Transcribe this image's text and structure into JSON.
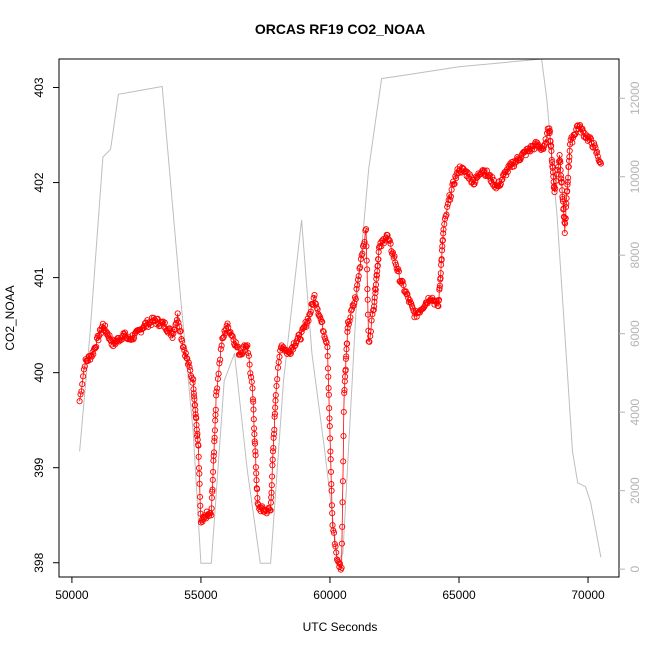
{
  "chart_data": {
    "type": "line",
    "title": "ORCAS RF19 CO2_NOAA",
    "xlabel": "UTC Seconds",
    "ylabel": "CO2_NOAA",
    "xlim": [
      49500,
      71200
    ],
    "ylim": [
      397.85,
      403.3
    ],
    "y2lim": [
      -200,
      13000
    ],
    "x_ticks": [
      50000,
      55000,
      60000,
      65000,
      70000
    ],
    "y_ticks": [
      398,
      399,
      400,
      401,
      402,
      403
    ],
    "y2_ticks": [
      0,
      2000,
      4000,
      6000,
      8000,
      10000,
      12000
    ],
    "colors": {
      "co2": "#ff0000",
      "altitude": "#bebebe",
      "axis": "#000000",
      "right_axis": "#b3b3b3"
    },
    "series": [
      {
        "style": "points-and-line",
        "axis": "left",
        "keypoints": [
          [
            50300,
            399.7
          ],
          [
            50400,
            399.9
          ],
          [
            50500,
            400.1
          ],
          [
            50800,
            400.2
          ],
          [
            51000,
            400.35
          ],
          [
            51200,
            400.5
          ],
          [
            51400,
            400.4
          ],
          [
            51600,
            400.3
          ],
          [
            51800,
            400.35
          ],
          [
            52000,
            400.4
          ],
          [
            52200,
            400.35
          ],
          [
            52500,
            400.4
          ],
          [
            52800,
            400.5
          ],
          [
            53200,
            400.55
          ],
          [
            53600,
            400.5
          ],
          [
            53900,
            400.4
          ],
          [
            54100,
            400.6
          ],
          [
            54300,
            400.3
          ],
          [
            54500,
            400.1
          ],
          [
            54700,
            399.9
          ],
          [
            54900,
            399.2
          ],
          [
            55000,
            398.4
          ],
          [
            55200,
            398.5
          ],
          [
            55400,
            398.5
          ],
          [
            55600,
            399.8
          ],
          [
            55800,
            400.3
          ],
          [
            56000,
            400.5
          ],
          [
            56200,
            400.4
          ],
          [
            56500,
            400.2
          ],
          [
            56800,
            400.3
          ],
          [
            57000,
            399.8
          ],
          [
            57200,
            398.6
          ],
          [
            57400,
            398.55
          ],
          [
            57700,
            398.55
          ],
          [
            57900,
            399.8
          ],
          [
            58100,
            400.3
          ],
          [
            58400,
            400.2
          ],
          [
            58600,
            400.3
          ],
          [
            58900,
            400.4
          ],
          [
            59200,
            400.6
          ],
          [
            59400,
            400.8
          ],
          [
            59700,
            400.5
          ],
          [
            59900,
            400.3
          ],
          [
            60100,
            398.4
          ],
          [
            60300,
            398.0
          ],
          [
            60450,
            397.95
          ],
          [
            60550,
            399.8
          ],
          [
            60700,
            400.5
          ],
          [
            61000,
            400.8
          ],
          [
            61200,
            401.2
          ],
          [
            61400,
            401.5
          ],
          [
            61500,
            400.3
          ],
          [
            61700,
            400.7
          ],
          [
            61900,
            401.3
          ],
          [
            62200,
            401.45
          ],
          [
            62500,
            401.2
          ],
          [
            62700,
            401.0
          ],
          [
            63000,
            400.8
          ],
          [
            63300,
            400.6
          ],
          [
            63600,
            400.7
          ],
          [
            63900,
            400.8
          ],
          [
            64200,
            400.7
          ],
          [
            64400,
            401.5
          ],
          [
            64600,
            401.8
          ],
          [
            64800,
            402.0
          ],
          [
            65000,
            402.15
          ],
          [
            65300,
            402.1
          ],
          [
            65600,
            402.0
          ],
          [
            65900,
            402.15
          ],
          [
            66200,
            402.05
          ],
          [
            66500,
            401.95
          ],
          [
            66800,
            402.1
          ],
          [
            67100,
            402.2
          ],
          [
            67500,
            402.3
          ],
          [
            68000,
            402.4
          ],
          [
            68300,
            402.35
          ],
          [
            68500,
            402.6
          ],
          [
            68700,
            401.9
          ],
          [
            68900,
            402.3
          ],
          [
            69100,
            401.5
          ],
          [
            69300,
            402.4
          ],
          [
            69600,
            402.6
          ],
          [
            69900,
            402.5
          ],
          [
            70200,
            402.4
          ],
          [
            70500,
            402.2
          ]
        ]
      },
      {
        "style": "line",
        "axis": "right",
        "keypoints": [
          [
            50300,
            3000
          ],
          [
            50700,
            6000
          ],
          [
            51200,
            10500
          ],
          [
            51500,
            10700
          ],
          [
            51800,
            12100
          ],
          [
            53500,
            12300
          ],
          [
            54200,
            7000
          ],
          [
            54700,
            3500
          ],
          [
            55000,
            150
          ],
          [
            55400,
            150
          ],
          [
            55900,
            4800
          ],
          [
            56300,
            5500
          ],
          [
            56800,
            2500
          ],
          [
            57300,
            150
          ],
          [
            57700,
            150
          ],
          [
            58200,
            4800
          ],
          [
            58900,
            8900
          ],
          [
            59300,
            5500
          ],
          [
            59800,
            3000
          ],
          [
            60300,
            200
          ],
          [
            60500,
            400
          ],
          [
            61000,
            6500
          ],
          [
            61500,
            10200
          ],
          [
            62000,
            12500
          ],
          [
            63000,
            12600
          ],
          [
            64000,
            12700
          ],
          [
            65000,
            12800
          ],
          [
            68200,
            13000
          ],
          [
            68400,
            12000
          ],
          [
            68800,
            9000
          ],
          [
            69200,
            5000
          ],
          [
            69400,
            3000
          ],
          [
            69600,
            2200
          ],
          [
            69900,
            2100
          ],
          [
            70100,
            1700
          ],
          [
            70300,
            1000
          ],
          [
            70500,
            300
          ]
        ]
      }
    ]
  }
}
